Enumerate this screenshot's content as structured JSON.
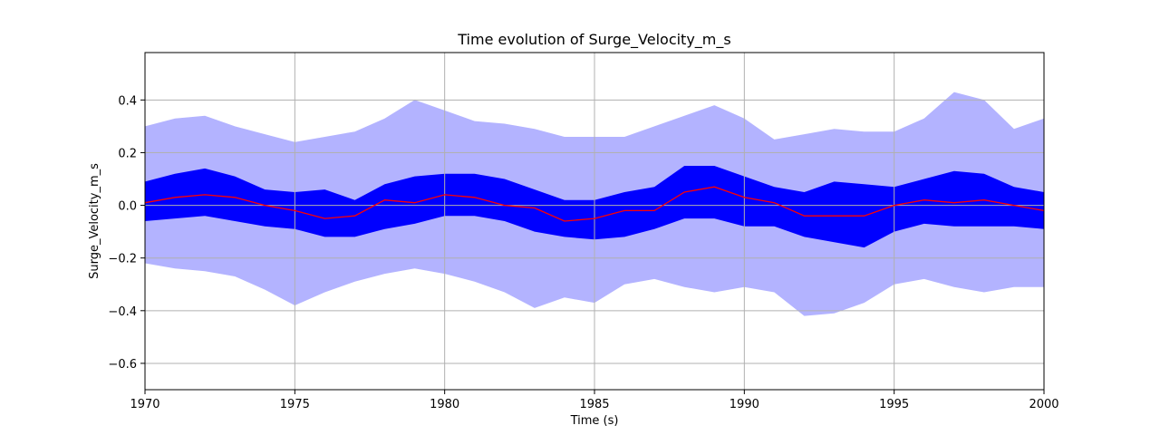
{
  "chart_data": {
    "type": "area",
    "title": "Time evolution of Surge_Velocity_m_s",
    "xlabel": "Time (s)",
    "ylabel": "Surge_Velocity_m_s",
    "xlim": [
      1970,
      2000
    ],
    "ylim": [
      -0.7,
      0.58
    ],
    "xticks": [
      1970,
      1975,
      1980,
      1985,
      1990,
      1995,
      2000
    ],
    "xtick_labels": [
      "1970",
      "1975",
      "1980",
      "1985",
      "1990",
      "1995",
      "2000"
    ],
    "yticks": [
      0.4,
      0.2,
      0.0,
      -0.2,
      -0.4,
      -0.6
    ],
    "ytick_labels": [
      "0.4",
      "0.2",
      "0.0",
      "−0.2",
      "−0.4",
      "−0.6"
    ],
    "grid": true,
    "colors": {
      "outer_band": "#b3b3ff",
      "inner_band": "#0000ff",
      "mean_line": "#ff0000",
      "grid": "#b0b0b0",
      "axes": "#000000"
    },
    "x": [
      1970,
      1971,
      1972,
      1973,
      1974,
      1975,
      1976,
      1977,
      1978,
      1979,
      1980,
      1981,
      1982,
      1983,
      1984,
      1985,
      1986,
      1987,
      1988,
      1989,
      1990,
      1991,
      1992,
      1993,
      1994,
      1995,
      1996,
      1997,
      1998,
      1999,
      2000
    ],
    "series": [
      {
        "role": "outer_band",
        "upper": [
          0.3,
          0.33,
          0.34,
          0.3,
          0.27,
          0.24,
          0.26,
          0.28,
          0.33,
          0.4,
          0.36,
          0.32,
          0.31,
          0.29,
          0.26,
          0.26,
          0.26,
          0.3,
          0.34,
          0.38,
          0.33,
          0.25,
          0.27,
          0.29,
          0.28,
          0.28,
          0.33,
          0.43,
          0.4,
          0.29,
          0.33
        ],
        "lower": [
          -0.22,
          -0.24,
          -0.25,
          -0.27,
          -0.32,
          -0.38,
          -0.33,
          -0.29,
          -0.26,
          -0.24,
          -0.26,
          -0.29,
          -0.33,
          -0.39,
          -0.35,
          -0.37,
          -0.3,
          -0.28,
          -0.31,
          -0.33,
          -0.31,
          -0.33,
          -0.42,
          -0.41,
          -0.37,
          -0.3,
          -0.28,
          -0.31,
          -0.33,
          -0.31,
          -0.31
        ]
      },
      {
        "role": "inner_band",
        "upper": [
          0.09,
          0.12,
          0.14,
          0.11,
          0.06,
          0.05,
          0.06,
          0.02,
          0.08,
          0.11,
          0.12,
          0.12,
          0.1,
          0.06,
          0.02,
          0.02,
          0.05,
          0.07,
          0.15,
          0.15,
          0.11,
          0.07,
          0.05,
          0.09,
          0.08,
          0.07,
          0.1,
          0.13,
          0.12,
          0.07,
          0.05
        ],
        "lower": [
          -0.06,
          -0.05,
          -0.04,
          -0.06,
          -0.08,
          -0.09,
          -0.12,
          -0.12,
          -0.09,
          -0.07,
          -0.04,
          -0.04,
          -0.06,
          -0.1,
          -0.12,
          -0.13,
          -0.12,
          -0.09,
          -0.05,
          -0.05,
          -0.08,
          -0.08,
          -0.12,
          -0.14,
          -0.16,
          -0.1,
          -0.07,
          -0.08,
          -0.08,
          -0.08,
          -0.09
        ]
      },
      {
        "role": "mean_line",
        "values": [
          0.01,
          0.03,
          0.04,
          0.03,
          0.0,
          -0.02,
          -0.05,
          -0.04,
          0.02,
          0.01,
          0.04,
          0.03,
          0.0,
          -0.01,
          -0.06,
          -0.05,
          -0.02,
          -0.02,
          0.05,
          0.07,
          0.03,
          0.01,
          -0.04,
          -0.04,
          -0.04,
          0.0,
          0.02,
          0.01,
          0.02,
          0.0,
          -0.02
        ]
      }
    ]
  }
}
